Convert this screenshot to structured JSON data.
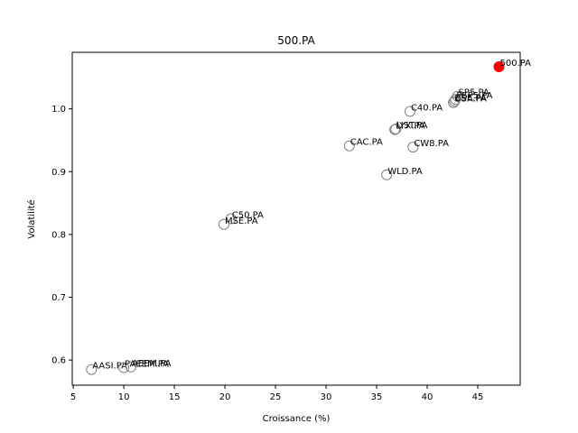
{
  "chart_data": {
    "type": "scatter",
    "title": "500.PA",
    "xlabel": "Croissance (%)",
    "ylabel": "Volatilité",
    "xlim": [
      4.9,
      49.2
    ],
    "ylim": [
      0.56,
      1.09
    ],
    "xticks": [
      5,
      10,
      15,
      20,
      25,
      30,
      35,
      40,
      45
    ],
    "yticks": [
      0.6,
      0.7,
      0.8,
      0.9,
      1.0
    ],
    "ytick_labels": [
      "0.6",
      "0.7",
      "0.8",
      "0.9",
      "1.0"
    ],
    "grid": false,
    "highlight_color": "#ff0000",
    "marker_edge_color": "#808080",
    "points": [
      {
        "label": "500.PA",
        "x": 47.1,
        "y": 1.067,
        "highlight": true
      },
      {
        "label": "SP5.PA",
        "x": 43.0,
        "y": 1.02
      },
      {
        "label": "PSP5.PA",
        "x": 42.8,
        "y": 1.015
      },
      {
        "label": "USA.PA",
        "x": 42.6,
        "y": 1.01
      },
      {
        "label": "ESE.PA",
        "x": 42.7,
        "y": 1.012
      },
      {
        "label": "C40.PA",
        "x": 38.3,
        "y": 0.996
      },
      {
        "label": "LYX.PA",
        "x": 36.8,
        "y": 0.967
      },
      {
        "label": "UST.PA",
        "x": 36.9,
        "y": 0.968
      },
      {
        "label": "CAC.PA",
        "x": 32.3,
        "y": 0.941
      },
      {
        "label": "CW8.PA",
        "x": 38.6,
        "y": 0.939
      },
      {
        "label": "WLD.PA",
        "x": 36.0,
        "y": 0.895
      },
      {
        "label": "C50.PA",
        "x": 20.6,
        "y": 0.825
      },
      {
        "label": "MSE.PA",
        "x": 19.9,
        "y": 0.816
      },
      {
        "label": "AASI.PA",
        "x": 6.8,
        "y": 0.585
      },
      {
        "label": "PAEEM.PA",
        "x": 10.0,
        "y": 0.588
      },
      {
        "label": "AEEM.PA",
        "x": 10.7,
        "y": 0.589
      }
    ]
  }
}
